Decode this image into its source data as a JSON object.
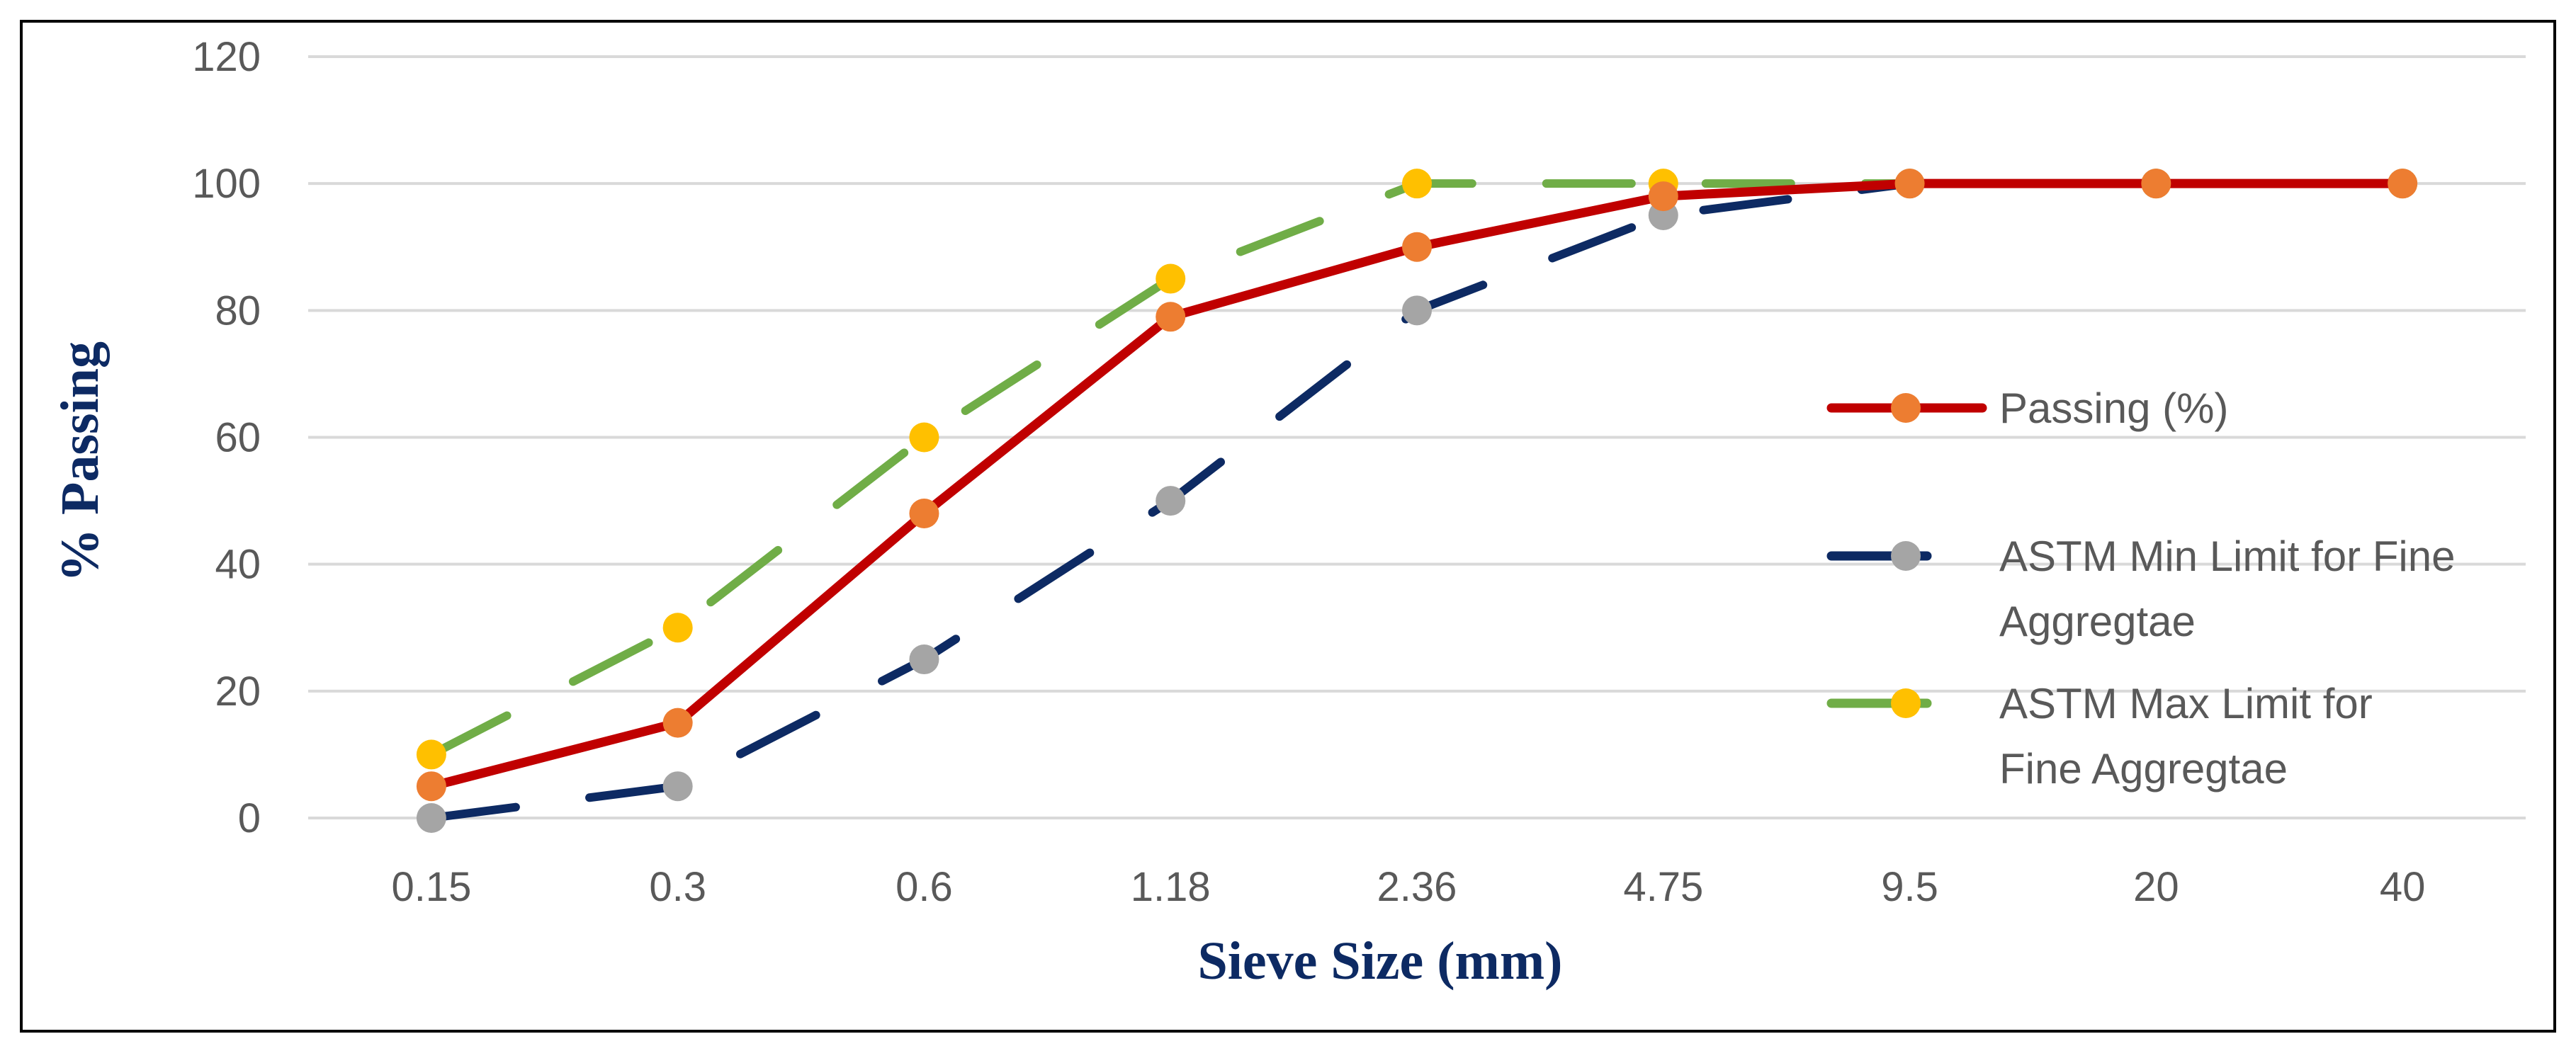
{
  "chart_data": {
    "type": "line",
    "title": "",
    "xlabel": "Sieve Size (mm)",
    "ylabel": "% Passing",
    "categories": [
      "0.15",
      "0.3",
      "0.6",
      "1.18",
      "2.36",
      "4.75",
      "9.5",
      "20",
      "40"
    ],
    "ylim": [
      0,
      120
    ],
    "yticks": [
      0,
      20,
      40,
      60,
      80,
      100,
      120
    ],
    "grid": true,
    "legend_position": "right",
    "series": [
      {
        "name": "Passing (%)",
        "values": [
          5,
          15,
          48,
          79,
          90,
          98,
          100,
          100,
          100
        ],
        "line_color": "#c00000",
        "marker_color": "#ed7d31",
        "dash": "solid"
      },
      {
        "name": "ASTM Min Limit for Fine Aggregtae",
        "legend_lines": [
          "ASTM Min Limit for Fine",
          "Aggregtae"
        ],
        "values": [
          0,
          5,
          25,
          50,
          80,
          95,
          100,
          100,
          100
        ],
        "line_color": "#0d2a63",
        "marker_color": "#a5a5a5",
        "dash": "long-dash"
      },
      {
        "name": "ASTM Max Limit for Fine Aggregtae",
        "legend_lines": [
          "ASTM Max Limit for",
          "Fine Aggregtae"
        ],
        "values": [
          10,
          30,
          60,
          85,
          100,
          100,
          100,
          100,
          100
        ],
        "line_color": "#70ad47",
        "marker_color": "#ffc000",
        "dash": "long-dash"
      }
    ]
  }
}
